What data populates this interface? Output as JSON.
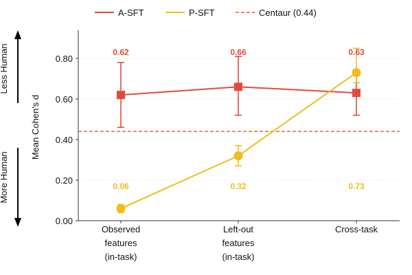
{
  "colors": {
    "a_sft": "#e14b3b",
    "p_sft": "#f2bc1b",
    "centaur": "#de7a3e",
    "text": "#111111",
    "grid": "#e2e2e2"
  },
  "chart_data": {
    "type": "line",
    "categories": [
      [
        "Observed",
        "features",
        "(in-task)"
      ],
      [
        "Left-out",
        "features",
        "(in-task)"
      ],
      [
        "Cross-task"
      ]
    ],
    "series": [
      {
        "name": "A-SFT",
        "marker": "square",
        "values": [
          0.62,
          0.66,
          0.63
        ],
        "err_low": [
          0.46,
          0.52,
          0.52
        ],
        "err_high": [
          0.78,
          0.81,
          0.74
        ],
        "labels": [
          "0.62",
          "0.66",
          "0.63"
        ]
      },
      {
        "name": "P-SFT",
        "marker": "circle",
        "values": [
          0.06,
          0.32,
          0.73
        ],
        "err_low": [
          0.04,
          0.27,
          0.68
        ],
        "err_high": [
          0.08,
          0.37,
          0.85
        ],
        "labels": [
          "0.06",
          "0.32",
          "0.73"
        ]
      }
    ],
    "reference_line": {
      "name": "Centaur (0.44)",
      "value": 0.44,
      "style": "dashed"
    },
    "ylabel": "Mean Cohen's d",
    "ylim": [
      0,
      0.94
    ],
    "yticks": [
      0.0,
      0.2,
      0.4,
      0.6,
      0.8
    ],
    "ytick_labels": [
      "0.00",
      "0.20",
      "0.40",
      "0.60",
      "0.80"
    ],
    "side_labels": {
      "top": "Less Human",
      "bottom": "More Human"
    },
    "grid": "horizontal",
    "legend": "top"
  }
}
